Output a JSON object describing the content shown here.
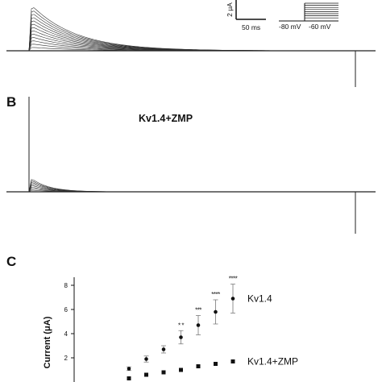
{
  "panel_a": {
    "scale_bar": {
      "current_label": "2 μA",
      "time_label": "50 ms"
    },
    "protocol": {
      "holding_label": "-80 mV",
      "pre_label": "-60 mV"
    }
  },
  "panel_b": {
    "letter": "B",
    "label": "Kv1.4+ZMP"
  },
  "panel_c": {
    "letter": "C"
  },
  "chart_data": {
    "type": "scatter",
    "ylabel": "Current (μA)",
    "yticks": [
      2,
      4,
      6,
      8
    ],
    "ylim": [
      0,
      9
    ],
    "x": [
      1,
      2,
      3,
      4,
      5,
      6,
      7
    ],
    "series": [
      {
        "name": "Kv1.4",
        "marker": "circle",
        "values": [
          1.1,
          1.9,
          2.7,
          3.7,
          4.7,
          5.8,
          6.9
        ],
        "errors": [
          0.15,
          0.25,
          0.3,
          0.55,
          0.8,
          1.0,
          1.2
        ],
        "significance": [
          "",
          "",
          "",
          "* *",
          "***",
          "****",
          "****"
        ]
      },
      {
        "name": "Kv1.4+ZMP",
        "marker": "square",
        "values": [
          0.3,
          0.6,
          0.8,
          1.0,
          1.3,
          1.5,
          1.7
        ]
      }
    ]
  }
}
